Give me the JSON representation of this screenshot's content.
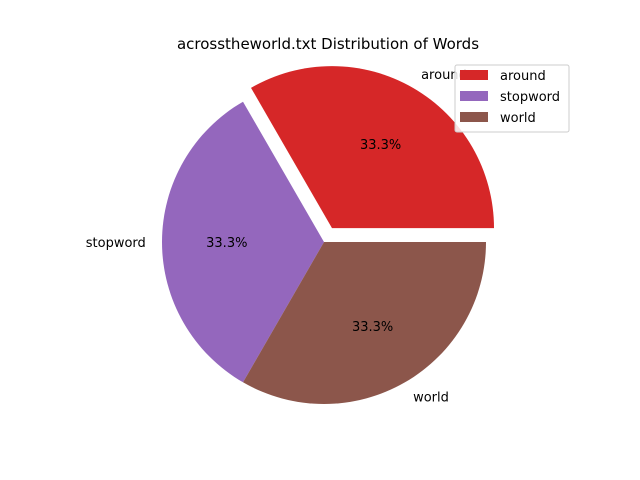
{
  "chart_data": {
    "type": "pie",
    "title": "acrosstheworld.txt Distribution of Words",
    "categories": [
      "around",
      "stopword",
      "world"
    ],
    "values": [
      1,
      1,
      1
    ],
    "percent_labels": [
      "33.3%",
      "33.3%",
      "33.3%"
    ],
    "colors": [
      "#d62728",
      "#9467bd",
      "#8c564b"
    ],
    "exploded": [
      "around"
    ],
    "legend": {
      "placement": "top-right",
      "entries": [
        "around",
        "stopword",
        "world"
      ]
    }
  }
}
